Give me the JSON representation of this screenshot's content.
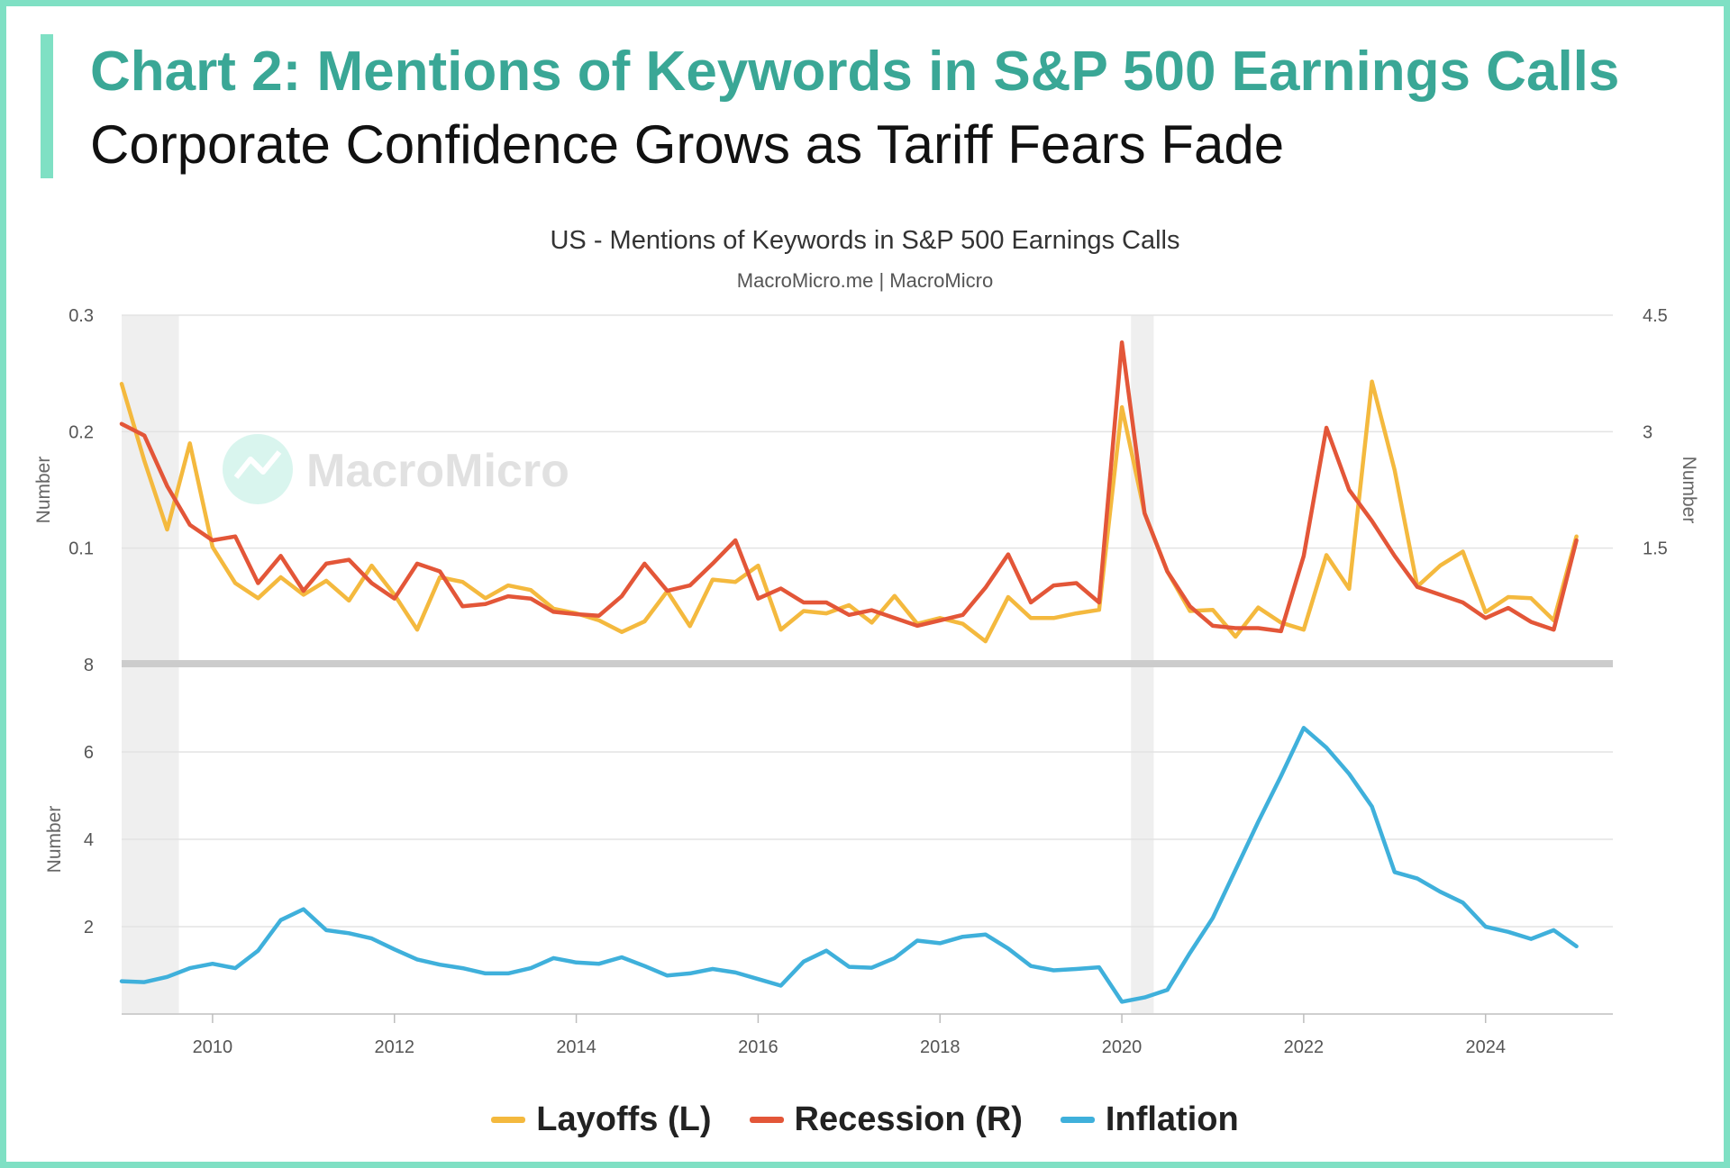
{
  "header": {
    "title": "Chart 2: Mentions of Keywords in S&P 500 Earnings Calls",
    "subtitle": "Corporate Confidence Grows as Tariff Fears Fade"
  },
  "colors": {
    "accent": "#7fe0c4",
    "title": "#3aa796",
    "layoffs": "#f4b93e",
    "recession": "#e35638",
    "inflation": "#3fb0db",
    "recession_band": "#efefef"
  },
  "watermark": "MacroMicro",
  "chart_data": {
    "type": "line",
    "title": "US - Mentions of Keywords in S&P 500 Earnings Calls",
    "source": "MacroMicro.me | MacroMicro",
    "x_ticks": [
      "2010",
      "2012",
      "2014",
      "2016",
      "2018",
      "2020",
      "2022",
      "2024"
    ],
    "x_range": [
      2009.0,
      2025.4
    ],
    "recession_bands": [
      [
        2009.0,
        2009.63
      ],
      [
        2020.1,
        2020.35
      ]
    ],
    "panels": [
      {
        "name": "top",
        "left_axis": {
          "label": "Number",
          "range": [
            0,
            0.3
          ],
          "ticks": [
            "0.1",
            "0.2",
            "0.3"
          ],
          "tick_values": [
            0.1,
            0.2,
            0.3
          ]
        },
        "right_axis": {
          "label": "Number",
          "range": [
            0,
            4.5
          ],
          "ticks": [
            "1.5",
            "3",
            "4.5"
          ],
          "tick_values": [
            1.5,
            3,
            4.5
          ]
        }
      },
      {
        "name": "bottom",
        "left_axis": {
          "label": "Number",
          "range": [
            0,
            8
          ],
          "ticks": [
            "2",
            "4",
            "6",
            "8"
          ],
          "tick_values": [
            2,
            4,
            6,
            8
          ]
        }
      }
    ],
    "series": [
      {
        "name": "Layoffs (L)",
        "axis": "top-left",
        "x": [
          2009.0,
          2009.25,
          2009.5,
          2009.75,
          2010.0,
          2010.25,
          2010.5,
          2010.75,
          2011.0,
          2011.25,
          2011.5,
          2011.75,
          2012.0,
          2012.25,
          2012.5,
          2012.75,
          2013.0,
          2013.25,
          2013.5,
          2013.75,
          2014.0,
          2014.25,
          2014.5,
          2014.75,
          2015.0,
          2015.25,
          2015.5,
          2015.75,
          2016.0,
          2016.25,
          2016.5,
          2016.75,
          2017.0,
          2017.25,
          2017.5,
          2017.75,
          2018.0,
          2018.25,
          2018.5,
          2018.75,
          2019.0,
          2019.25,
          2019.5,
          2019.75,
          2020.0,
          2020.25,
          2020.5,
          2020.75,
          2021.0,
          2021.25,
          2021.5,
          2021.75,
          2022.0,
          2022.25,
          2022.5,
          2022.75,
          2023.0,
          2023.25,
          2023.5,
          2023.75,
          2024.0,
          2024.25,
          2024.5,
          2024.75,
          2025.0
        ],
        "values": [
          0.241,
          0.175,
          0.116,
          0.19,
          0.101,
          0.07,
          0.057,
          0.075,
          0.06,
          0.072,
          0.055,
          0.085,
          0.06,
          0.03,
          0.075,
          0.071,
          0.057,
          0.068,
          0.064,
          0.048,
          0.044,
          0.038,
          0.028,
          0.037,
          0.063,
          0.033,
          0.073,
          0.071,
          0.085,
          0.03,
          0.046,
          0.044,
          0.051,
          0.036,
          0.059,
          0.035,
          0.04,
          0.035,
          0.02,
          0.058,
          0.04,
          0.04,
          0.044,
          0.047,
          0.221,
          0.13,
          0.08,
          0.046,
          0.047,
          0.024,
          0.049,
          0.036,
          0.03,
          0.094,
          0.065,
          0.243,
          0.167,
          0.067,
          0.085,
          0.097,
          0.045,
          0.058,
          0.057,
          0.038,
          0.11
        ]
      },
      {
        "name": "Recession (R)",
        "axis": "top-right",
        "x": [
          2009.0,
          2009.25,
          2009.5,
          2009.75,
          2010.0,
          2010.25,
          2010.5,
          2010.75,
          2011.0,
          2011.25,
          2011.5,
          2011.75,
          2012.0,
          2012.25,
          2012.5,
          2012.75,
          2013.0,
          2013.25,
          2013.5,
          2013.75,
          2014.0,
          2014.25,
          2014.5,
          2014.75,
          2015.0,
          2015.25,
          2015.5,
          2015.75,
          2016.0,
          2016.25,
          2016.5,
          2016.75,
          2017.0,
          2017.25,
          2017.5,
          2017.75,
          2018.0,
          2018.25,
          2018.5,
          2018.75,
          2019.0,
          2019.25,
          2019.5,
          2019.75,
          2020.0,
          2020.25,
          2020.5,
          2020.75,
          2021.0,
          2021.25,
          2021.5,
          2021.75,
          2022.0,
          2022.25,
          2022.5,
          2022.75,
          2023.0,
          2023.25,
          2023.5,
          2023.75,
          2024.0,
          2024.25,
          2024.5,
          2024.75,
          2025.0
        ],
        "values": [
          3.1,
          2.95,
          2.3,
          1.8,
          1.6,
          1.65,
          1.05,
          1.4,
          0.95,
          1.3,
          1.35,
          1.05,
          0.85,
          1.3,
          1.2,
          0.75,
          0.78,
          0.88,
          0.85,
          0.68,
          0.65,
          0.63,
          0.88,
          1.3,
          0.95,
          1.02,
          1.3,
          1.6,
          0.85,
          0.98,
          0.8,
          0.8,
          0.64,
          0.7,
          0.6,
          0.5,
          0.57,
          0.64,
          0.99,
          1.42,
          0.8,
          1.02,
          1.05,
          0.8,
          4.15,
          1.95,
          1.2,
          0.75,
          0.5,
          0.47,
          0.47,
          0.43,
          1.4,
          3.05,
          2.25,
          1.85,
          1.4,
          1.0,
          0.9,
          0.8,
          0.6,
          0.73,
          0.55,
          0.45,
          1.6
        ]
      },
      {
        "name": "Inflation",
        "axis": "bottom-left",
        "x": [
          2009.0,
          2009.25,
          2009.5,
          2009.75,
          2010.0,
          2010.25,
          2010.5,
          2010.75,
          2011.0,
          2011.25,
          2011.5,
          2011.75,
          2012.0,
          2012.25,
          2012.5,
          2012.75,
          2013.0,
          2013.25,
          2013.5,
          2013.75,
          2014.0,
          2014.25,
          2014.5,
          2014.75,
          2015.0,
          2015.25,
          2015.5,
          2015.75,
          2016.0,
          2016.25,
          2016.5,
          2016.75,
          2017.0,
          2017.25,
          2017.5,
          2017.75,
          2018.0,
          2018.25,
          2018.5,
          2018.75,
          2019.0,
          2019.25,
          2019.5,
          2019.75,
          2020.0,
          2020.25,
          2020.5,
          2020.75,
          2021.0,
          2021.25,
          2021.5,
          2021.75,
          2022.0,
          2022.25,
          2022.5,
          2022.75,
          2023.0,
          2023.25,
          2023.5,
          2023.75,
          2024.0,
          2024.25,
          2024.5,
          2024.75,
          2025.0
        ],
        "values": [
          0.75,
          0.73,
          0.85,
          1.05,
          1.15,
          1.05,
          1.45,
          2.15,
          2.4,
          1.92,
          1.85,
          1.73,
          1.48,
          1.25,
          1.13,
          1.05,
          0.93,
          0.93,
          1.05,
          1.28,
          1.18,
          1.15,
          1.3,
          1.1,
          0.88,
          0.93,
          1.03,
          0.95,
          0.8,
          0.65,
          1.2,
          1.45,
          1.08,
          1.06,
          1.28,
          1.68,
          1.62,
          1.77,
          1.82,
          1.5,
          1.1,
          1.0,
          1.03,
          1.07,
          0.28,
          0.38,
          0.55,
          1.4,
          2.2,
          3.3,
          4.4,
          5.45,
          6.55,
          6.1,
          5.5,
          4.75,
          3.25,
          3.1,
          2.8,
          2.55,
          2.0,
          1.88,
          1.72,
          1.92,
          1.55
        ]
      }
    ]
  },
  "legend": [
    {
      "label": "Layoffs (L)",
      "color": "#f4b93e"
    },
    {
      "label": "Recession (R)",
      "color": "#e35638"
    },
    {
      "label": "Inflation",
      "color": "#3fb0db"
    }
  ]
}
